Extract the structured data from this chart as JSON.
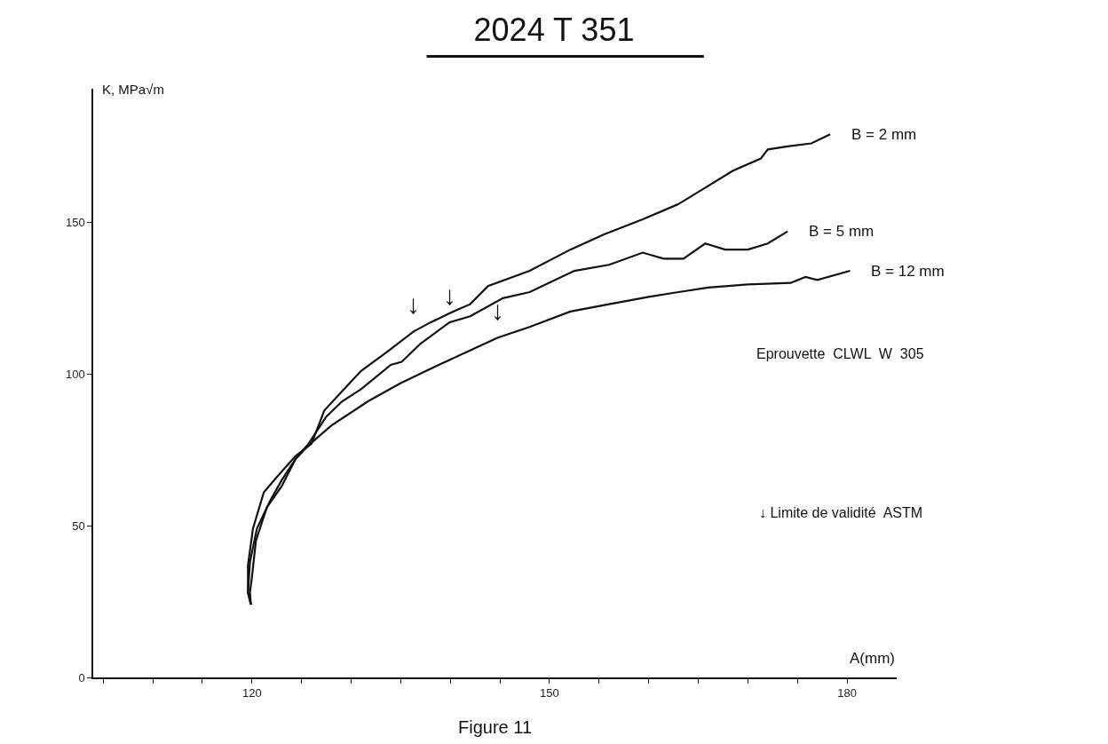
{
  "chart_data": {
    "type": "line",
    "title": "2024 T 351",
    "xlabel": "A(mm)",
    "ylabel": "K, MPa√m",
    "xlim": [
      104,
      185
    ],
    "ylim": [
      0,
      194
    ],
    "xticks": [
      {
        "value": 105,
        "label": null
      },
      {
        "value": 110,
        "label": null
      },
      {
        "value": 115,
        "label": null
      },
      120,
      {
        "value": 125,
        "label": null
      },
      {
        "value": 130,
        "label": null
      },
      {
        "value": 135,
        "label": null
      },
      {
        "value": 140,
        "label": null
      },
      {
        "value": 145,
        "label": null
      },
      150,
      {
        "value": 155,
        "label": null
      },
      {
        "value": 160,
        "label": null
      },
      {
        "value": 165,
        "label": null
      },
      {
        "value": 170,
        "label": null
      },
      {
        "value": 175,
        "label": null
      },
      180
    ],
    "yticks": [
      0,
      50,
      100,
      150
    ],
    "legend": false,
    "marker": "none",
    "line_style": "solid",
    "series": [
      {
        "name": "B = 2 mm",
        "color": "#111111",
        "x": [
          119.9,
          119.6,
          119.6,
          120.1,
          121.2,
          122.5,
          124.4,
          126,
          127.3,
          129,
          131,
          133.5,
          136.3,
          138,
          139.9,
          142,
          143.8,
          148,
          152.1,
          155.5,
          159.4,
          163,
          166,
          168.5,
          171.3,
          172,
          174,
          176.4,
          178.3
        ],
        "values": [
          24,
          28,
          37,
          49,
          61,
          66,
          73,
          77,
          88,
          94,
          101,
          107,
          114,
          117,
          120,
          123,
          129,
          134,
          141,
          146,
          151,
          156,
          162,
          167,
          171,
          174,
          175,
          176,
          179
        ]
      },
      {
        "name": "B = 5 mm",
        "color": "#111111",
        "x": [
          119.9,
          119.8,
          120,
          120.4,
          121.5,
          123,
          124.4,
          125.7,
          127.5,
          129.1,
          131,
          134,
          135.1,
          137,
          139.9,
          142,
          145.3,
          148,
          152.5,
          156,
          159.4,
          161.5,
          163.5,
          165.7,
          167.7,
          170,
          172,
          174
        ],
        "values": [
          24,
          28,
          33,
          45,
          56,
          63,
          72,
          77,
          86,
          91,
          95,
          103,
          104,
          110,
          117,
          119,
          125,
          127,
          134,
          136,
          140,
          138,
          138,
          143,
          141,
          141,
          143,
          147
        ]
      },
      {
        "name": "B = 12 mm",
        "color": "#111111",
        "x": [
          119.9,
          119.6,
          119.8,
          120.5,
          121.8,
          123,
          124.4,
          125.7,
          128,
          131.7,
          135,
          138.5,
          141.5,
          144.8,
          148,
          152.1,
          156,
          160,
          163,
          166,
          170,
          174.3,
          175.8,
          177,
          180.3
        ],
        "values": [
          24,
          28,
          38,
          49,
          58,
          65,
          72,
          76.5,
          83,
          91,
          97,
          102.5,
          107,
          112,
          115.5,
          120.6,
          123,
          125.4,
          127,
          128.5,
          129.5,
          130,
          132,
          131,
          134
        ]
      }
    ],
    "annotations": [
      {
        "text": "↓",
        "x": 136.3,
        "y": 114
      },
      {
        "text": "↓",
        "x": 139.9,
        "y": 117
      },
      {
        "text": "↓",
        "x": 144.8,
        "y": 112
      },
      "Eprouvette  CLWL  W  305",
      "↓ Limite de validité  ASTM",
      "Figure 11"
    ]
  }
}
